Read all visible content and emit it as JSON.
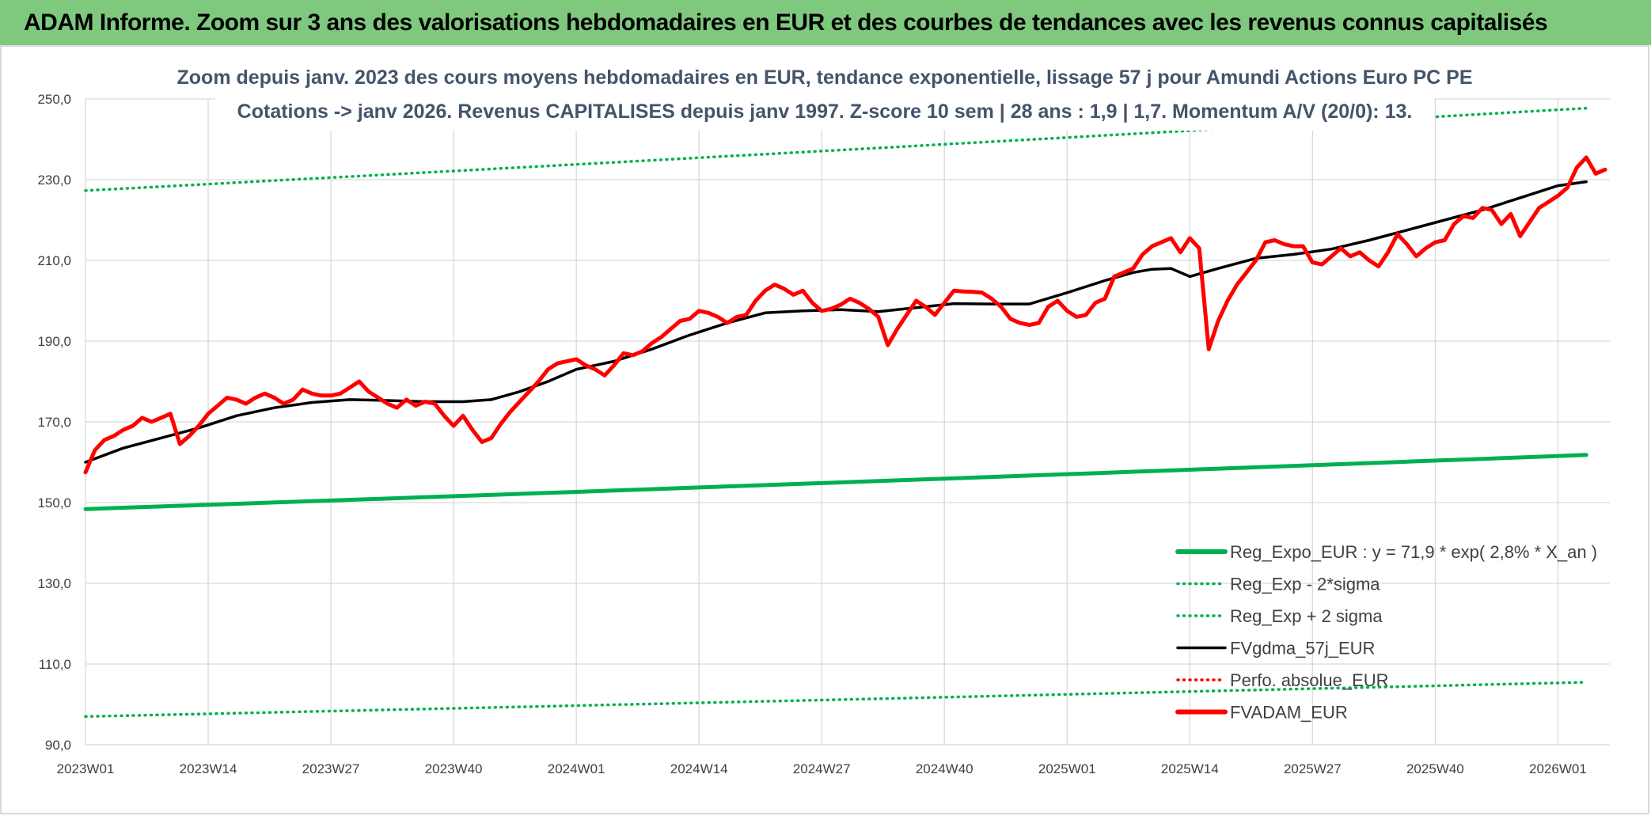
{
  "header": {
    "title": "ADAM Informe. Zoom sur 3 ans des valorisations hebdomadaires en EUR et des courbes de tendances avec les revenus connus capitalisés"
  },
  "chart_data": {
    "type": "line",
    "subtitle_line1": "Zoom depuis janv. 2023 des cours moyens hebdomadaires en EUR, tendance exponentielle, lissage 57 j pour Amundi Actions Euro PC PE",
    "subtitle_line2": "Cotations -> janv 2026. Revenus CAPITALISES depuis janv 1997. Z-score 10 sem | 28 ans : 1,9 | 1,7. Momentum A/V (20/0): 13.",
    "ylim": [
      90,
      250
    ],
    "yticks": [
      "250,0",
      "230,0",
      "210,0",
      "190,0",
      "170,0",
      "150,0",
      "130,0",
      "110,0",
      "90,0"
    ],
    "xticks": [
      "2023W01",
      "2023W14",
      "2023W27",
      "2023W40",
      "2024W01",
      "2024W14",
      "2024W27",
      "2024W40",
      "2025W01",
      "2025W14",
      "2025W27",
      "2025W40",
      "2026W01"
    ],
    "grid": true,
    "legend_position": "bottom-right",
    "series": [
      {
        "name": "Reg_Expo_EUR : y = 71,9 * exp( 2,8% *  X_an )",
        "color": "#00b050",
        "style": "solid-thick",
        "x_start": "2023W01",
        "x_end": "2026W04",
        "y_start": 148.4,
        "y_end": 161.8
      },
      {
        "name": "Reg_Exp - 2*sigma",
        "color": "#00b050",
        "style": "dotted",
        "x_start": "2023W01",
        "x_end": "2026W04",
        "y_start": 97.0,
        "y_end": 105.5
      },
      {
        "name": "Reg_Exp + 2 sigma",
        "color": "#00b050",
        "style": "dotted",
        "x_start": "2023W01",
        "x_end": "2026W04",
        "y_start": 227.3,
        "y_end": 247.7
      },
      {
        "name": "FVgdma_57j_EUR",
        "color": "#000000",
        "style": "solid",
        "points": [
          [
            "2023W01",
            160.0
          ],
          [
            "2023W05",
            163.5
          ],
          [
            "2023W09",
            166.0
          ],
          [
            "2023W13",
            168.5
          ],
          [
            "2023W17",
            171.5
          ],
          [
            "2023W21",
            173.5
          ],
          [
            "2023W25",
            174.8
          ],
          [
            "2023W29",
            175.5
          ],
          [
            "2023W33",
            175.3
          ],
          [
            "2023W37",
            175.0
          ],
          [
            "2023W41",
            175.0
          ],
          [
            "2023W44",
            175.5
          ],
          [
            "2023W47",
            177.5
          ],
          [
            "2023W50",
            180.0
          ],
          [
            "2024W01",
            183.0
          ],
          [
            "2024W05",
            185.0
          ],
          [
            "2024W09",
            188.0
          ],
          [
            "2024W13",
            191.5
          ],
          [
            "2024W17",
            194.5
          ],
          [
            "2024W21",
            197.0
          ],
          [
            "2024W25",
            197.5
          ],
          [
            "2024W29",
            197.8
          ],
          [
            "2024W33",
            197.3
          ],
          [
            "2024W37",
            198.3
          ],
          [
            "2024W41",
            199.3
          ],
          [
            "2024W45",
            199.2
          ],
          [
            "2024W49",
            199.2
          ],
          [
            "2025W01",
            202.0
          ],
          [
            "2025W05",
            205.0
          ],
          [
            "2025W08",
            207.0
          ],
          [
            "2025W10",
            207.8
          ],
          [
            "2025W12",
            208.0
          ],
          [
            "2025W14",
            206.0
          ],
          [
            "2025W17",
            208.0
          ],
          [
            "2025W21",
            210.5
          ],
          [
            "2025W25",
            211.5
          ],
          [
            "2025W29",
            212.8
          ],
          [
            "2025W33",
            215.0
          ],
          [
            "2025W37",
            217.5
          ],
          [
            "2025W41",
            220.0
          ],
          [
            "2025W45",
            222.5
          ],
          [
            "2025W49",
            225.5
          ],
          [
            "2026W01",
            228.5
          ],
          [
            "2026W04",
            229.5
          ]
        ]
      },
      {
        "name": "Perfo. absolue_EUR",
        "color": "#ff0000",
        "style": "dotted",
        "points": []
      },
      {
        "name": "FVADAM_EUR",
        "color": "#ff0000",
        "style": "solid-thick",
        "points": [
          [
            "2023W01",
            157.5
          ],
          [
            "2023W02",
            163.0
          ],
          [
            "2023W03",
            165.5
          ],
          [
            "2023W04",
            166.5
          ],
          [
            "2023W05",
            168.0
          ],
          [
            "2023W06",
            169.0
          ],
          [
            "2023W07",
            171.0
          ],
          [
            "2023W08",
            170.0
          ],
          [
            "2023W09",
            171.0
          ],
          [
            "2023W10",
            172.0
          ],
          [
            "2023W11",
            164.5
          ],
          [
            "2023W12",
            166.5
          ],
          [
            "2023W13",
            169.0
          ],
          [
            "2023W14",
            172.0
          ],
          [
            "2023W15",
            174.0
          ],
          [
            "2023W16",
            176.0
          ],
          [
            "2023W17",
            175.5
          ],
          [
            "2023W18",
            174.5
          ],
          [
            "2023W19",
            176.0
          ],
          [
            "2023W20",
            177.0
          ],
          [
            "2023W21",
            176.0
          ],
          [
            "2023W22",
            174.5
          ],
          [
            "2023W23",
            175.5
          ],
          [
            "2023W24",
            178.0
          ],
          [
            "2023W25",
            177.0
          ],
          [
            "2023W26",
            176.5
          ],
          [
            "2023W27",
            176.5
          ],
          [
            "2023W28",
            177.0
          ],
          [
            "2023W29",
            178.5
          ],
          [
            "2023W30",
            180.0
          ],
          [
            "2023W31",
            177.5
          ],
          [
            "2023W32",
            176.0
          ],
          [
            "2023W33",
            174.5
          ],
          [
            "2023W34",
            173.5
          ],
          [
            "2023W35",
            175.5
          ],
          [
            "2023W36",
            174.0
          ],
          [
            "2023W37",
            175.0
          ],
          [
            "2023W38",
            174.5
          ],
          [
            "2023W39",
            171.5
          ],
          [
            "2023W40",
            169.0
          ],
          [
            "2023W41",
            171.5
          ],
          [
            "2023W42",
            168.0
          ],
          [
            "2023W43",
            165.0
          ],
          [
            "2023W44",
            166.0
          ],
          [
            "2023W45",
            169.5
          ],
          [
            "2023W46",
            172.5
          ],
          [
            "2023W47",
            175.0
          ],
          [
            "2023W48",
            177.5
          ],
          [
            "2023W49",
            180.0
          ],
          [
            "2023W50",
            183.0
          ],
          [
            "2023W51",
            184.5
          ],
          [
            "2023W52",
            185.0
          ],
          [
            "2024W01",
            185.5
          ],
          [
            "2024W02",
            184.0
          ],
          [
            "2024W03",
            183.0
          ],
          [
            "2024W04",
            181.5
          ],
          [
            "2024W05",
            184.0
          ],
          [
            "2024W06",
            187.0
          ],
          [
            "2024W07",
            186.5
          ],
          [
            "2024W08",
            187.5
          ],
          [
            "2024W09",
            189.5
          ],
          [
            "2024W10",
            191.0
          ],
          [
            "2024W11",
            193.0
          ],
          [
            "2024W12",
            195.0
          ],
          [
            "2024W13",
            195.5
          ],
          [
            "2024W14",
            197.5
          ],
          [
            "2024W15",
            197.0
          ],
          [
            "2024W16",
            196.0
          ],
          [
            "2024W17",
            194.5
          ],
          [
            "2024W18",
            196.0
          ],
          [
            "2024W19",
            196.5
          ],
          [
            "2024W20",
            200.0
          ],
          [
            "2024W21",
            202.5
          ],
          [
            "2024W22",
            204.0
          ],
          [
            "2024W23",
            203.0
          ],
          [
            "2024W24",
            201.5
          ],
          [
            "2024W25",
            202.5
          ],
          [
            "2024W26",
            199.5
          ],
          [
            "2024W27",
            197.5
          ],
          [
            "2024W28",
            198.0
          ],
          [
            "2024W29",
            199.0
          ],
          [
            "2024W30",
            200.5
          ],
          [
            "2024W31",
            199.5
          ],
          [
            "2024W32",
            198.0
          ],
          [
            "2024W33",
            196.0
          ],
          [
            "2024W34",
            189.0
          ],
          [
            "2024W35",
            193.0
          ],
          [
            "2024W36",
            196.5
          ],
          [
            "2024W37",
            200.0
          ],
          [
            "2024W38",
            198.5
          ],
          [
            "2024W39",
            196.5
          ],
          [
            "2024W40",
            199.5
          ],
          [
            "2024W41",
            202.5
          ],
          [
            "2024W42",
            202.3
          ],
          [
            "2024W43",
            202.2
          ],
          [
            "2024W44",
            202.0
          ],
          [
            "2024W45",
            200.5
          ],
          [
            "2024W46",
            198.5
          ],
          [
            "2024W47",
            195.5
          ],
          [
            "2024W48",
            194.5
          ],
          [
            "2024W49",
            194.0
          ],
          [
            "2024W50",
            194.5
          ],
          [
            "2024W51",
            198.5
          ],
          [
            "2024W52",
            200.0
          ],
          [
            "2025W01",
            197.5
          ],
          [
            "2025W02",
            196.0
          ],
          [
            "2025W03",
            196.5
          ],
          [
            "2025W04",
            199.5
          ],
          [
            "2025W05",
            200.5
          ],
          [
            "2025W06",
            206.0
          ],
          [
            "2025W07",
            207.0
          ],
          [
            "2025W08",
            208.0
          ],
          [
            "2025W09",
            211.5
          ],
          [
            "2025W10",
            213.5
          ],
          [
            "2025W11",
            214.5
          ],
          [
            "2025W12",
            215.5
          ],
          [
            "2025W13",
            212.0
          ],
          [
            "2025W14",
            215.5
          ],
          [
            "2025W15",
            213.0
          ],
          [
            "2025W16",
            188.0
          ],
          [
            "2025W17",
            195.0
          ],
          [
            "2025W18",
            200.0
          ],
          [
            "2025W19",
            204.0
          ],
          [
            "2025W20",
            207.0
          ],
          [
            "2025W21",
            210.0
          ],
          [
            "2025W22",
            214.5
          ],
          [
            "2025W23",
            215.0
          ],
          [
            "2025W24",
            214.0
          ],
          [
            "2025W25",
            213.5
          ],
          [
            "2025W26",
            213.5
          ],
          [
            "2025W27",
            209.5
          ],
          [
            "2025W28",
            209.0
          ],
          [
            "2025W29",
            211.0
          ],
          [
            "2025W30",
            213.0
          ],
          [
            "2025W31",
            211.0
          ],
          [
            "2025W32",
            212.0
          ],
          [
            "2025W33",
            210.0
          ],
          [
            "2025W34",
            208.5
          ],
          [
            "2025W35",
            212.0
          ],
          [
            "2025W36",
            216.5
          ],
          [
            "2025W37",
            214.0
          ],
          [
            "2025W38",
            211.0
          ],
          [
            "2025W39",
            213.0
          ],
          [
            "2025W40",
            214.5
          ],
          [
            "2025W41",
            215.0
          ],
          [
            "2025W42",
            219.0
          ],
          [
            "2025W43",
            221.0
          ],
          [
            "2025W44",
            220.5
          ],
          [
            "2025W45",
            223.0
          ],
          [
            "2025W46",
            222.5
          ],
          [
            "2025W47",
            219.0
          ],
          [
            "2025W48",
            221.5
          ],
          [
            "2025W49",
            216.0
          ],
          [
            "2025W50",
            219.5
          ],
          [
            "2025W51",
            223.0
          ],
          [
            "2025W52",
            224.5
          ],
          [
            "2026W01",
            226.0
          ],
          [
            "2026W02",
            228.0
          ],
          [
            "2026W03",
            233.0
          ],
          [
            "2026W04",
            235.5
          ],
          [
            "2026W05",
            231.5
          ],
          [
            "2026W06",
            232.5
          ]
        ]
      }
    ]
  }
}
